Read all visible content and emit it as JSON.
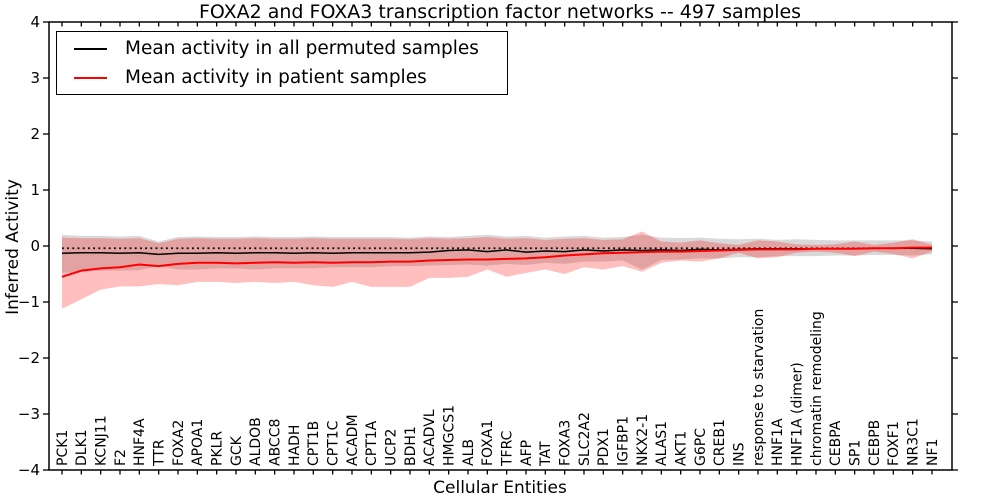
{
  "chart_data": {
    "type": "area",
    "title": "FOXA2 and FOXA3 transcription factor networks -- 497 samples",
    "xlabel": "Cellular Entities",
    "ylabel": "Inferred Activity",
    "ylim": [
      -4,
      4
    ],
    "y_ticks": [
      "−4",
      "−3",
      "−2",
      "−1",
      "0",
      "1",
      "2",
      "3",
      "4"
    ],
    "grid": false,
    "legend_position": "upper-left",
    "reference_line": {
      "value": -0.04,
      "style": "dotted",
      "color": "#000000"
    },
    "categories": [
      "PCK1",
      "DLK1",
      "KCNJ11",
      "F2",
      "HNF4A",
      "TTR",
      "FOXA2",
      "APOA1",
      "PKLR",
      "GCK",
      "ALDOB",
      "ABCC8",
      "HADH",
      "CPT1B",
      "CPT1C",
      "ACADM",
      "CPT1A",
      "UCP2",
      "BDH1",
      "ACADVL",
      "HMGCS1",
      "ALB",
      "FOXA1",
      "TFRC",
      "AFP",
      "TAT",
      "FOXA3",
      "SLC2A2",
      "PDX1",
      "IGFBP1",
      "NKX2-1",
      "ALAS1",
      "AKT1",
      "G6PC",
      "CREB1",
      "INS",
      "response to starvation",
      "HNF1A",
      "HNF1A (dimer)",
      "chromatin remodeling",
      "CEBPA",
      "SP1",
      "CEBPB",
      "FOXF1",
      "NR3C1",
      "NF1"
    ],
    "series": [
      {
        "name": "Mean activity in all permuted samples",
        "color": "#000000",
        "band_color": "rgba(0,0,0,0.15)",
        "mean": [
          -0.13,
          -0.12,
          -0.12,
          -0.13,
          -0.12,
          -0.15,
          -0.13,
          -0.13,
          -0.12,
          -0.13,
          -0.12,
          -0.12,
          -0.13,
          -0.12,
          -0.13,
          -0.12,
          -0.12,
          -0.12,
          -0.12,
          -0.11,
          -0.08,
          -0.07,
          -0.1,
          -0.07,
          -0.11,
          -0.09,
          -0.1,
          -0.07,
          -0.09,
          -0.07,
          -0.08,
          -0.07,
          -0.08,
          -0.06,
          -0.07,
          -0.06,
          -0.05,
          -0.05,
          -0.05,
          -0.05,
          -0.05,
          -0.05,
          -0.04,
          -0.04,
          -0.04,
          -0.05
        ],
        "upper": [
          0.2,
          0.18,
          0.18,
          0.17,
          0.18,
          0.08,
          0.16,
          0.17,
          0.16,
          0.16,
          0.17,
          0.16,
          0.16,
          0.17,
          0.16,
          0.16,
          0.16,
          0.16,
          0.15,
          0.17,
          0.16,
          0.18,
          0.2,
          0.17,
          0.18,
          0.15,
          0.17,
          0.18,
          0.15,
          0.16,
          0.2,
          0.15,
          0.14,
          0.15,
          0.13,
          0.12,
          0.13,
          0.11,
          0.12,
          0.11,
          0.1,
          0.1,
          0.1,
          0.1,
          0.1,
          0.08
        ],
        "lower": [
          -0.48,
          -0.46,
          -0.44,
          -0.44,
          -0.43,
          -0.36,
          -0.42,
          -0.42,
          -0.4,
          -0.4,
          -0.42,
          -0.4,
          -0.4,
          -0.4,
          -0.38,
          -0.38,
          -0.38,
          -0.36,
          -0.36,
          -0.35,
          -0.34,
          -0.33,
          -0.35,
          -0.32,
          -0.34,
          -0.3,
          -0.32,
          -0.28,
          -0.28,
          -0.26,
          -0.42,
          -0.25,
          -0.24,
          -0.22,
          -0.22,
          -0.2,
          -0.2,
          -0.18,
          -0.18,
          -0.18,
          -0.17,
          -0.17,
          -0.16,
          -0.16,
          -0.17,
          -0.15
        ]
      },
      {
        "name": "Mean activity in patient samples",
        "color": "#ff0000",
        "band_color": "rgba(255,0,0,0.25)",
        "mean": [
          -0.55,
          -0.44,
          -0.4,
          -0.38,
          -0.33,
          -0.36,
          -0.32,
          -0.3,
          -0.3,
          -0.31,
          -0.3,
          -0.29,
          -0.3,
          -0.29,
          -0.3,
          -0.29,
          -0.29,
          -0.28,
          -0.28,
          -0.26,
          -0.25,
          -0.24,
          -0.24,
          -0.23,
          -0.22,
          -0.2,
          -0.17,
          -0.15,
          -0.13,
          -0.12,
          -0.11,
          -0.1,
          -0.1,
          -0.09,
          -0.08,
          -0.07,
          -0.06,
          -0.06,
          -0.06,
          -0.05,
          -0.05,
          -0.05,
          -0.04,
          -0.04,
          -0.03,
          -0.03
        ],
        "upper": [
          0.15,
          0.14,
          0.14,
          0.13,
          0.14,
          0.05,
          0.13,
          0.14,
          0.13,
          0.13,
          0.14,
          0.13,
          0.13,
          0.14,
          0.13,
          0.13,
          0.13,
          0.13,
          0.12,
          0.14,
          0.13,
          0.14,
          0.16,
          0.13,
          0.14,
          0.11,
          0.13,
          0.14,
          0.11,
          0.12,
          0.26,
          0.08,
          0.06,
          0.1,
          0.05,
          0.02,
          0.1,
          0.08,
          0.03,
          0.02,
          0.03,
          0.08,
          0.02,
          0.06,
          0.12,
          0.02
        ],
        "lower": [
          -1.12,
          -0.95,
          -0.78,
          -0.72,
          -0.72,
          -0.68,
          -0.7,
          -0.64,
          -0.64,
          -0.66,
          -0.64,
          -0.66,
          -0.64,
          -0.7,
          -0.73,
          -0.64,
          -0.73,
          -0.73,
          -0.73,
          -0.57,
          -0.57,
          -0.55,
          -0.42,
          -0.55,
          -0.48,
          -0.42,
          -0.5,
          -0.38,
          -0.42,
          -0.36,
          -0.46,
          -0.3,
          -0.26,
          -0.28,
          -0.22,
          -0.12,
          -0.22,
          -0.2,
          -0.12,
          -0.1,
          -0.12,
          -0.18,
          -0.1,
          -0.14,
          -0.22,
          -0.1
        ]
      }
    ]
  }
}
